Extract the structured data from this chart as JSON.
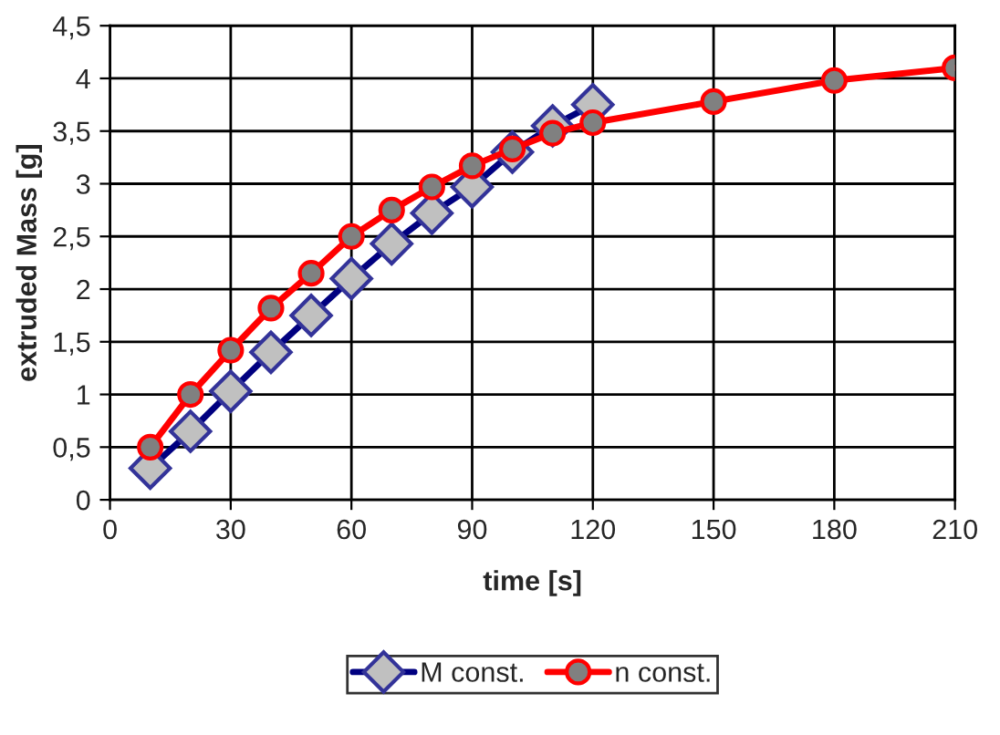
{
  "chart_data": {
    "type": "line",
    "xlabel": "time [s]",
    "ylabel": "extruded Mass [g]",
    "xlim": [
      0,
      210
    ],
    "xticks": [
      0,
      30,
      60,
      90,
      120,
      150,
      180,
      210
    ],
    "ylim": [
      0,
      4.5
    ],
    "yticks": [
      0,
      {
        "value": 0.5,
        "label": "0,5"
      },
      1,
      {
        "value": 1.5,
        "label": "1,5"
      },
      2,
      {
        "value": 2.5,
        "label": "2,5"
      },
      3,
      {
        "value": 3.5,
        "label": "3,5"
      },
      4,
      {
        "value": 4.5,
        "label": "4,5"
      }
    ],
    "grid": true,
    "legend": "bottom",
    "series": [
      {
        "name": "M const.",
        "color": "#000080",
        "marker": "diamond",
        "x": [
          10,
          20,
          30,
          40,
          50,
          60,
          70,
          80,
          90,
          100,
          110,
          120
        ],
        "values": [
          0.3,
          0.65,
          1.03,
          1.4,
          1.75,
          2.1,
          2.43,
          2.72,
          2.97,
          3.3,
          3.55,
          3.75
        ]
      },
      {
        "name": "n const.",
        "color": "#ff0000",
        "marker": "circle",
        "x": [
          10,
          20,
          30,
          40,
          50,
          60,
          70,
          80,
          90,
          100,
          110,
          120,
          150,
          180,
          210
        ],
        "values": [
          0.5,
          1.0,
          1.42,
          1.82,
          2.15,
          2.5,
          2.75,
          2.97,
          3.17,
          3.33,
          3.48,
          3.58,
          3.78,
          3.98,
          4.1
        ]
      }
    ]
  }
}
